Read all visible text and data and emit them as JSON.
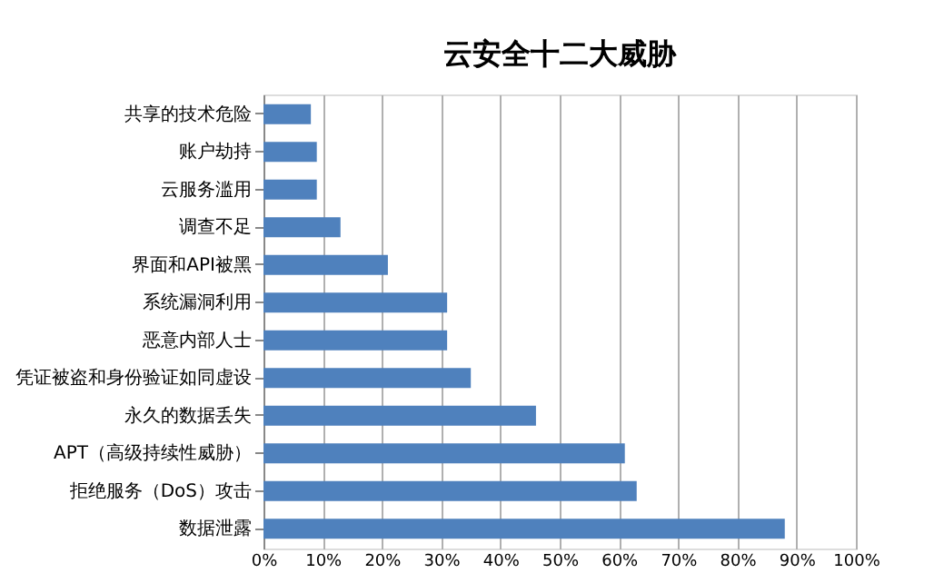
{
  "chart_data": {
    "type": "bar",
    "orientation": "horizontal",
    "title": "云安全十二大威胁",
    "categories": [
      "共享的技术危险",
      "账户劫持",
      "云服务滥用",
      "调查不足",
      "界面和API被黑",
      "系统漏洞利用",
      "恶意内部人士",
      "凭证被盗和身份验证如同虚设",
      "永久的数据丢失",
      "APT（高级持续性威胁）",
      "拒绝服务（DoS）攻击",
      "数据泄露"
    ],
    "values": [
      8,
      9,
      9,
      13,
      21,
      31,
      31,
      35,
      46,
      61,
      63,
      88
    ],
    "color": "#4f81bd",
    "xlim": [
      0,
      100
    ],
    "xticks": [
      {
        "value": 0,
        "label": "0%"
      },
      {
        "value": 10,
        "label": "10%"
      },
      {
        "value": 20,
        "label": "20%"
      },
      {
        "value": 30,
        "label": "30%"
      },
      {
        "value": 40,
        "label": "40%"
      },
      {
        "value": 50,
        "label": "50%"
      },
      {
        "value": 60,
        "label": "60%"
      },
      {
        "value": 70,
        "label": "70%"
      },
      {
        "value": 80,
        "label": "80%"
      },
      {
        "value": 90,
        "label": "90%"
      },
      {
        "value": 100,
        "label": "100%"
      }
    ],
    "grid": "x"
  }
}
